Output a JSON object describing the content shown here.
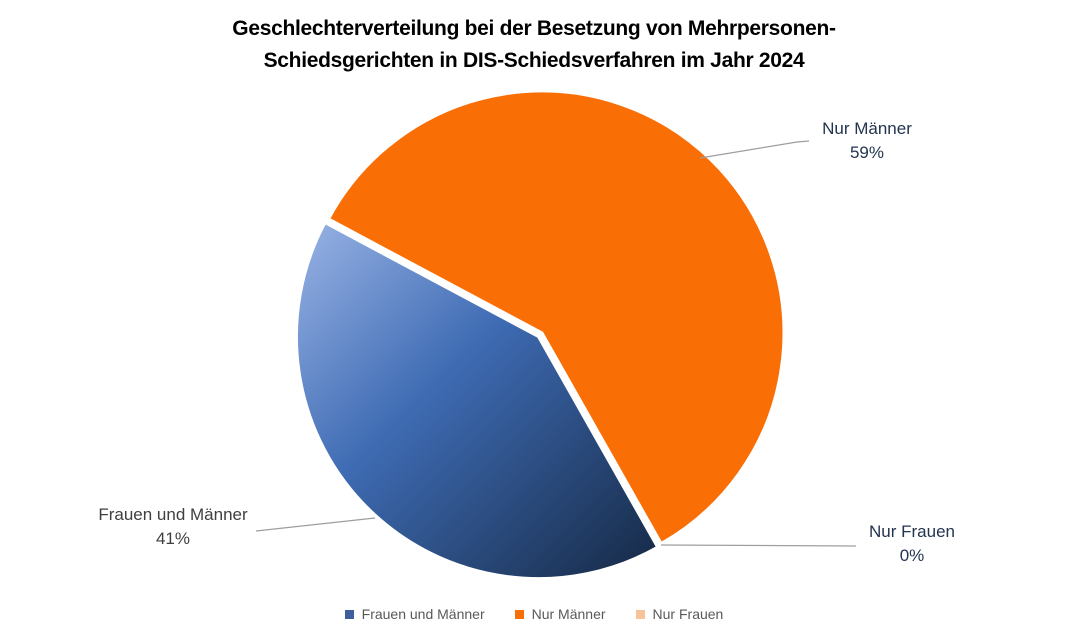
{
  "title": {
    "line1": "Geschlechterverteilung bei der Besetzung von Mehrpersonen-",
    "line2": "Schiedsgerichten in DIS-Schiedsverfahren im Jahr 2024"
  },
  "chart_data": {
    "type": "pie",
    "title": "Geschlechterverteilung bei der Besetzung von Mehrpersonen-Schiedsgerichten in DIS-Schiedsverfahren im Jahr 2024",
    "categories": [
      "Frauen und Männer",
      "Nur Männer",
      "Nur Frauen"
    ],
    "values": [
      41,
      59,
      0
    ],
    "unit": "%",
    "data_labels": [
      {
        "name": "Frauen und Männer",
        "value": "41%",
        "text_color": "#3F3F3F"
      },
      {
        "name": "Nur Männer",
        "value": "59%",
        "text_color": "#23344F"
      },
      {
        "name": "Nur Frauen",
        "value": "0%",
        "text_color": "#23344F"
      }
    ],
    "slice_colors": [
      "blue-gradient",
      "#FA6E06",
      "#F8C399"
    ],
    "blue_gradient": {
      "start": "#9AB4E6",
      "mid": "#3E6BB3",
      "end": "#152844"
    },
    "legend_position": "bottom",
    "first_slice_angle_deg": 150.5,
    "exploded_slice": "Frauen und Männer"
  },
  "legend": {
    "items": [
      {
        "label": "Frauen und Männer",
        "color": "#3E5F9E"
      },
      {
        "label": "Nur Männer",
        "color": "#FA6E06"
      },
      {
        "label": "Nur Frauen",
        "color": "#F8C399"
      }
    ]
  },
  "styles": {
    "background": "#FFFFFF",
    "title_color": "#000000",
    "legend_text_color": "#595959",
    "leader_line_color": "#9E9E9E"
  }
}
